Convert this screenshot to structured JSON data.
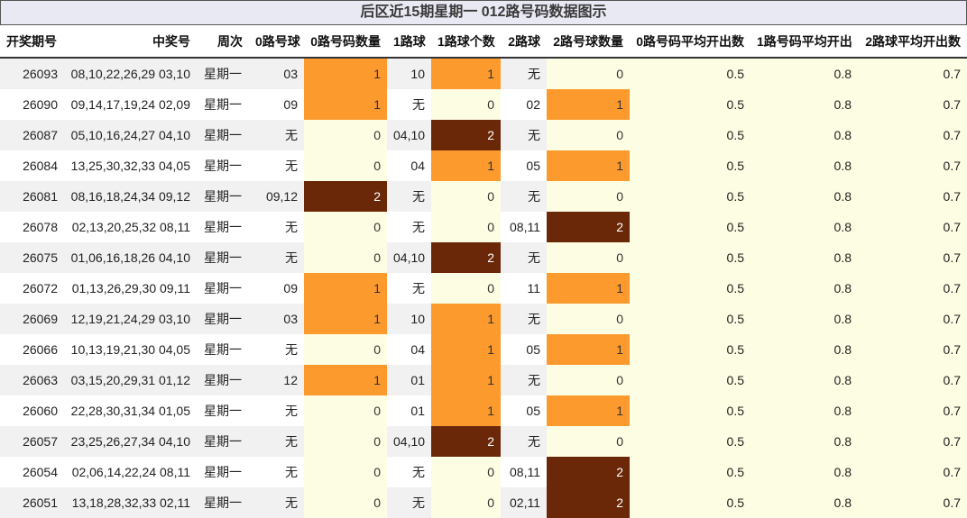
{
  "title": "后区近15期星期一 012路号码数据图示",
  "headers": [
    "开奖期号",
    "中奖号",
    "周次",
    "0路号球",
    "0路号码数量",
    "1路球",
    "1路球个数",
    "2路球",
    "2路号球数量",
    "0路号码平均开出数",
    "1路号码平均开出",
    "2路球平均开出数"
  ],
  "colors": {
    "level0": "#fdfde3",
    "level1": "#fc9a2e",
    "level2": "#6a2808"
  },
  "chart_data": {
    "type": "table",
    "title": "后区近15期星期一 012路号码数据图示",
    "columns": [
      "开奖期号",
      "中奖号",
      "周次",
      "0路号球",
      "0路号码数量",
      "1路球",
      "1路球个数",
      "2路球",
      "2路号球数量",
      "0路号码平均开出数",
      "1路号码平均开出",
      "2路球平均开出数"
    ],
    "rows": [
      {
        "issue": "26093",
        "numbers": "08,10,22,26,29 03,10",
        "weekday": "星期一",
        "r0": "03",
        "c0": "1",
        "r1": "10",
        "c1": "1",
        "r2": "无",
        "c2": "0",
        "a0": "0.5",
        "a1": "0.8",
        "a2": "0.7"
      },
      {
        "issue": "26090",
        "numbers": "09,14,17,19,24 02,09",
        "weekday": "星期一",
        "r0": "09",
        "c0": "1",
        "r1": "无",
        "c1": "0",
        "r2": "02",
        "c2": "1",
        "a0": "0.5",
        "a1": "0.8",
        "a2": "0.7"
      },
      {
        "issue": "26087",
        "numbers": "05,10,16,24,27 04,10",
        "weekday": "星期一",
        "r0": "无",
        "c0": "0",
        "r1": "04,10",
        "c1": "2",
        "r2": "无",
        "c2": "0",
        "a0": "0.5",
        "a1": "0.8",
        "a2": "0.7"
      },
      {
        "issue": "26084",
        "numbers": "13,25,30,32,33 04,05",
        "weekday": "星期一",
        "r0": "无",
        "c0": "0",
        "r1": "04",
        "c1": "1",
        "r2": "05",
        "c2": "1",
        "a0": "0.5",
        "a1": "0.8",
        "a2": "0.7"
      },
      {
        "issue": "26081",
        "numbers": "08,16,18,24,34 09,12",
        "weekday": "星期一",
        "r0": "09,12",
        "c0": "2",
        "r1": "无",
        "c1": "0",
        "r2": "无",
        "c2": "0",
        "a0": "0.5",
        "a1": "0.8",
        "a2": "0.7"
      },
      {
        "issue": "26078",
        "numbers": "02,13,20,25,32 08,11",
        "weekday": "星期一",
        "r0": "无",
        "c0": "0",
        "r1": "无",
        "c1": "0",
        "r2": "08,11",
        "c2": "2",
        "a0": "0.5",
        "a1": "0.8",
        "a2": "0.7"
      },
      {
        "issue": "26075",
        "numbers": "01,06,16,18,26 04,10",
        "weekday": "星期一",
        "r0": "无",
        "c0": "0",
        "r1": "04,10",
        "c1": "2",
        "r2": "无",
        "c2": "0",
        "a0": "0.5",
        "a1": "0.8",
        "a2": "0.7"
      },
      {
        "issue": "26072",
        "numbers": "01,13,26,29,30 09,11",
        "weekday": "星期一",
        "r0": "09",
        "c0": "1",
        "r1": "无",
        "c1": "0",
        "r2": "11",
        "c2": "1",
        "a0": "0.5",
        "a1": "0.8",
        "a2": "0.7"
      },
      {
        "issue": "26069",
        "numbers": "12,19,21,24,29 03,10",
        "weekday": "星期一",
        "r0": "03",
        "c0": "1",
        "r1": "10",
        "c1": "1",
        "r2": "无",
        "c2": "0",
        "a0": "0.5",
        "a1": "0.8",
        "a2": "0.7"
      },
      {
        "issue": "26066",
        "numbers": "10,13,19,21,30 04,05",
        "weekday": "星期一",
        "r0": "无",
        "c0": "0",
        "r1": "04",
        "c1": "1",
        "r2": "05",
        "c2": "1",
        "a0": "0.5",
        "a1": "0.8",
        "a2": "0.7"
      },
      {
        "issue": "26063",
        "numbers": "03,15,20,29,31 01,12",
        "weekday": "星期一",
        "r0": "12",
        "c0": "1",
        "r1": "01",
        "c1": "1",
        "r2": "无",
        "c2": "0",
        "a0": "0.5",
        "a1": "0.8",
        "a2": "0.7"
      },
      {
        "issue": "26060",
        "numbers": "22,28,30,31,34 01,05",
        "weekday": "星期一",
        "r0": "无",
        "c0": "0",
        "r1": "01",
        "c1": "1",
        "r2": "05",
        "c2": "1",
        "a0": "0.5",
        "a1": "0.8",
        "a2": "0.7"
      },
      {
        "issue": "26057",
        "numbers": "23,25,26,27,34 04,10",
        "weekday": "星期一",
        "r0": "无",
        "c0": "0",
        "r1": "04,10",
        "c1": "2",
        "r2": "无",
        "c2": "0",
        "a0": "0.5",
        "a1": "0.8",
        "a2": "0.7"
      },
      {
        "issue": "26054",
        "numbers": "02,06,14,22,24 08,11",
        "weekday": "星期一",
        "r0": "无",
        "c0": "0",
        "r1": "无",
        "c1": "0",
        "r2": "08,11",
        "c2": "2",
        "a0": "0.5",
        "a1": "0.8",
        "a2": "0.7"
      },
      {
        "issue": "26051",
        "numbers": "13,18,28,32,33 02,11",
        "weekday": "星期一",
        "r0": "无",
        "c0": "0",
        "r1": "无",
        "c1": "0",
        "r2": "02,11",
        "c2": "2",
        "a0": "0.5",
        "a1": "0.8",
        "a2": "0.7"
      }
    ]
  }
}
